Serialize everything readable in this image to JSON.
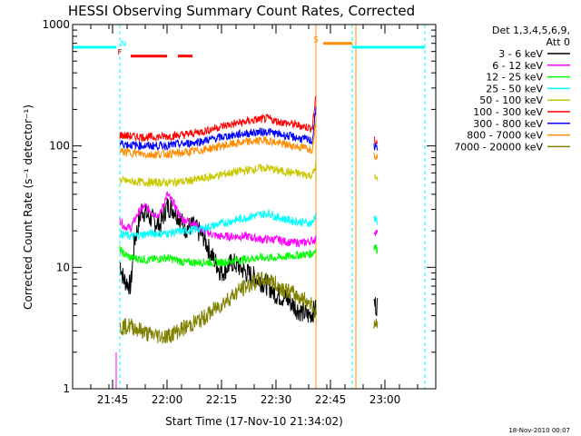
{
  "chart_data": {
    "type": "line",
    "title": "HESSI Observing Summary Count Rates, Corrected",
    "xlabel": "Start Time (17-Nov-10 21:34:02)",
    "ylabel": "Corrected Count Rate (s⁻¹ detector⁻¹)",
    "y_scale": "log",
    "ylim": [
      1,
      1000
    ],
    "xlim": [
      "21:34",
      "23:14"
    ],
    "x_ticks": [
      "21:45",
      "22:00",
      "22:15",
      "22:30",
      "22:45",
      "23:00"
    ],
    "y_ticks": [
      "1",
      "10",
      "100",
      "1000"
    ],
    "legend_title": "Det 1,3,4,5,6,9,",
    "legend_subtitle": "Att 0",
    "legend_position": "right",
    "timestamp": "18-Nov-2010 00:07",
    "segments": [
      [
        "21:47",
        "22:41"
      ],
      [
        "22:57",
        "22:59"
      ]
    ],
    "series": [
      {
        "name": "3 - 6 keV",
        "color": "#000000",
        "points": [
          [
            "21:47",
            11
          ],
          [
            "21:48",
            8
          ],
          [
            "21:50",
            7
          ],
          [
            "21:51",
            16
          ],
          [
            "21:53",
            30
          ],
          [
            "21:55",
            26
          ],
          [
            "21:58",
            22
          ],
          [
            "22:00",
            32
          ],
          [
            "22:02",
            30
          ],
          [
            "22:05",
            21
          ],
          [
            "22:07",
            22
          ],
          [
            "22:10",
            18
          ],
          [
            "22:12",
            13
          ],
          [
            "22:15",
            9
          ],
          [
            "22:18",
            11
          ],
          [
            "22:20",
            10
          ],
          [
            "22:22",
            9
          ],
          [
            "22:25",
            8
          ],
          [
            "22:28",
            7
          ],
          [
            "22:30",
            6
          ],
          [
            "22:33",
            5.5
          ],
          [
            "22:36",
            4.5
          ],
          [
            "22:39",
            4
          ],
          [
            "22:41",
            4.5
          ],
          [
            "22:57",
            5
          ],
          [
            "22:58",
            4.8
          ]
        ]
      },
      {
        "name": "6 - 12 keV",
        "color": "#ff00ff",
        "points": [
          [
            "21:47",
            25
          ],
          [
            "21:48",
            22
          ],
          [
            "21:50",
            21
          ],
          [
            "21:52",
            28
          ],
          [
            "21:54",
            32
          ],
          [
            "21:56",
            28
          ],
          [
            "21:58",
            27
          ],
          [
            "22:00",
            40
          ],
          [
            "22:02",
            33
          ],
          [
            "22:04",
            25
          ],
          [
            "22:06",
            24
          ],
          [
            "22:08",
            22
          ],
          [
            "22:10",
            20
          ],
          [
            "22:14",
            18
          ],
          [
            "22:18",
            18
          ],
          [
            "22:22",
            18
          ],
          [
            "22:26",
            17
          ],
          [
            "22:30",
            17
          ],
          [
            "22:34",
            16
          ],
          [
            "22:38",
            16
          ],
          [
            "22:41",
            17
          ],
          [
            "22:57",
            20
          ],
          [
            "22:58",
            19
          ]
        ]
      },
      {
        "name": "12 - 25 keV",
        "color": "#00ff00",
        "points": [
          [
            "21:47",
            14
          ],
          [
            "21:48",
            13
          ],
          [
            "21:50",
            12
          ],
          [
            "21:55",
            11.5
          ],
          [
            "22:00",
            12
          ],
          [
            "22:05",
            11
          ],
          [
            "22:10",
            11
          ],
          [
            "22:15",
            11
          ],
          [
            "22:20",
            11.5
          ],
          [
            "22:25",
            12
          ],
          [
            "22:30",
            12
          ],
          [
            "22:35",
            12.5
          ],
          [
            "22:40",
            13
          ],
          [
            "22:41",
            14
          ],
          [
            "22:57",
            15
          ],
          [
            "22:58",
            14
          ]
        ]
      },
      {
        "name": "25 - 50 keV",
        "color": "#00ffff",
        "points": [
          [
            "21:47",
            19
          ],
          [
            "21:50",
            18
          ],
          [
            "21:55",
            19
          ],
          [
            "22:00",
            19
          ],
          [
            "22:05",
            20
          ],
          [
            "22:10",
            21
          ],
          [
            "22:15",
            23
          ],
          [
            "22:20",
            25
          ],
          [
            "22:25",
            27
          ],
          [
            "22:28",
            28
          ],
          [
            "22:30",
            26
          ],
          [
            "22:35",
            24
          ],
          [
            "22:40",
            23
          ],
          [
            "22:41",
            28
          ],
          [
            "22:57",
            25
          ],
          [
            "22:58",
            24
          ]
        ]
      },
      {
        "name": "50 - 100 keV",
        "color": "#c8c800",
        "points": [
          [
            "21:47",
            52
          ],
          [
            "21:50",
            51
          ],
          [
            "21:55",
            50
          ],
          [
            "22:00",
            50
          ],
          [
            "22:05",
            51
          ],
          [
            "22:10",
            54
          ],
          [
            "22:15",
            58
          ],
          [
            "22:20",
            62
          ],
          [
            "22:25",
            65
          ],
          [
            "22:28",
            66
          ],
          [
            "22:30",
            63
          ],
          [
            "22:35",
            60
          ],
          [
            "22:40",
            57
          ],
          [
            "22:41",
            70
          ],
          [
            "22:57",
            55
          ],
          [
            "22:58",
            53
          ]
        ]
      },
      {
        "name": "100 - 300 keV",
        "color": "#ff0000",
        "points": [
          [
            "21:47",
            123
          ],
          [
            "21:50",
            120
          ],
          [
            "21:55",
            118
          ],
          [
            "22:00",
            120
          ],
          [
            "22:05",
            124
          ],
          [
            "22:10",
            132
          ],
          [
            "22:15",
            145
          ],
          [
            "22:20",
            155
          ],
          [
            "22:25",
            165
          ],
          [
            "22:28",
            168
          ],
          [
            "22:30",
            160
          ],
          [
            "22:35",
            150
          ],
          [
            "22:40",
            140
          ],
          [
            "22:41",
            260
          ],
          [
            "22:57",
            110
          ],
          [
            "22:58",
            108
          ]
        ]
      },
      {
        "name": "300 - 800 keV",
        "color": "#0000ff",
        "points": [
          [
            "21:47",
            105
          ],
          [
            "21:50",
            102
          ],
          [
            "21:55",
            100
          ],
          [
            "22:00",
            101
          ],
          [
            "22:05",
            104
          ],
          [
            "22:10",
            110
          ],
          [
            "22:15",
            118
          ],
          [
            "22:20",
            125
          ],
          [
            "22:25",
            130
          ],
          [
            "22:28",
            131
          ],
          [
            "22:30",
            126
          ],
          [
            "22:35",
            118
          ],
          [
            "22:40",
            110
          ],
          [
            "22:41",
            200
          ],
          [
            "22:57",
            100
          ],
          [
            "22:58",
            98
          ]
        ]
      },
      {
        "name": "800 - 7000 keV",
        "color": "#ff8c00",
        "points": [
          [
            "21:47",
            90
          ],
          [
            "21:50",
            88
          ],
          [
            "21:55",
            85
          ],
          [
            "22:00",
            86
          ],
          [
            "22:05",
            88
          ],
          [
            "22:10",
            93
          ],
          [
            "22:15",
            100
          ],
          [
            "22:20",
            106
          ],
          [
            "22:25",
            110
          ],
          [
            "22:28",
            111
          ],
          [
            "22:30",
            106
          ],
          [
            "22:35",
            100
          ],
          [
            "22:40",
            94
          ],
          [
            "22:41",
            170
          ],
          [
            "22:57",
            85
          ],
          [
            "22:58",
            83
          ]
        ]
      },
      {
        "name": "7000 - 20000 keV",
        "color": "#808000",
        "points": [
          [
            "21:47",
            3.2
          ],
          [
            "21:50",
            3.3
          ],
          [
            "21:55",
            2.8
          ],
          [
            "22:00",
            2.7
          ],
          [
            "22:05",
            3.2
          ],
          [
            "22:10",
            3.8
          ],
          [
            "22:15",
            5
          ],
          [
            "22:20",
            6.5
          ],
          [
            "22:25",
            7.8
          ],
          [
            "22:28",
            8
          ],
          [
            "22:30",
            7.2
          ],
          [
            "22:35",
            6
          ],
          [
            "22:40",
            5
          ],
          [
            "22:41",
            4
          ],
          [
            "22:57",
            3.5
          ],
          [
            "22:58",
            3.3
          ]
        ]
      }
    ],
    "state_bars": [
      {
        "label": "N",
        "color": "#00ffff",
        "level": 650,
        "spans": [
          [
            "21:34",
            "21:46"
          ],
          [
            "22:51",
            "23:11"
          ]
        ],
        "label_at": "21:48"
      },
      {
        "label": "F",
        "color": "#ff0000",
        "level": 550,
        "spans": [
          [
            "21:50",
            "22:00"
          ],
          [
            "22:03",
            "22:07"
          ]
        ],
        "label_at": "21:47"
      },
      {
        "label": "S",
        "color": "#ff8c00",
        "level": 700,
        "spans": [
          [
            "22:43",
            "22:51"
          ]
        ],
        "label_at": "22:41"
      }
    ],
    "vlines": [
      {
        "time": "21:34",
        "color": "#00ffff",
        "style": "solid"
      },
      {
        "time": "21:47",
        "color": "#00ffff",
        "style": "dashed"
      },
      {
        "time": "22:51",
        "color": "#00ffff",
        "style": "dashed"
      },
      {
        "time": "23:11",
        "color": "#00ffff",
        "style": "dashed"
      },
      {
        "time": "22:41",
        "color": "#ff8c00",
        "style": "solid"
      },
      {
        "time": "22:52",
        "color": "#ff8c00",
        "style": "solid"
      },
      {
        "time": "21:46",
        "color": "#ff00ff",
        "style": "solid",
        "ymax": 2
      }
    ]
  }
}
